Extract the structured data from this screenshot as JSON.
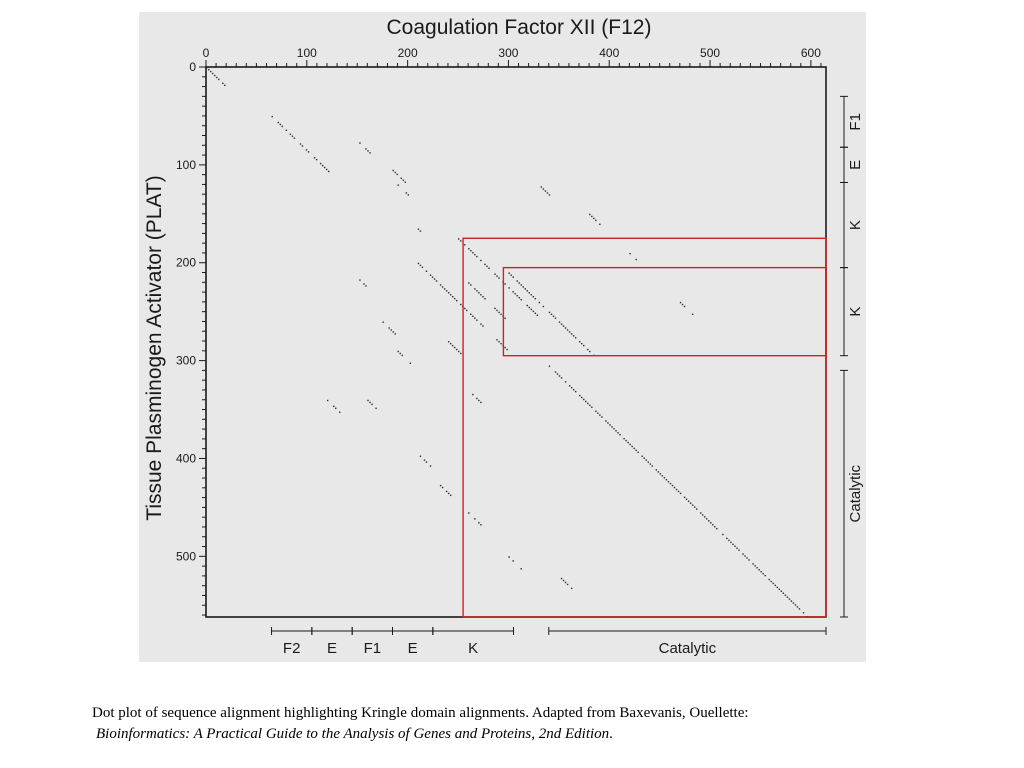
{
  "figure": {
    "title": "Coagulation Factor XII (F12)",
    "x_axis_label": "Coagulation Factor XII (F12)",
    "y_axis_label": "Tissue Plasminogen Activator (PLAT)",
    "x_ticks": [
      0,
      100,
      200,
      300,
      400,
      500,
      600
    ],
    "y_ticks": [
      0,
      100,
      200,
      300,
      400,
      500
    ],
    "x_max": 615,
    "y_max": 562,
    "bottom_domains": [
      {
        "label": "F2",
        "start": 65,
        "end": 105
      },
      {
        "label": "E",
        "start": 105,
        "end": 145
      },
      {
        "label": "F1",
        "start": 145,
        "end": 185
      },
      {
        "label": "E",
        "start": 185,
        "end": 225
      },
      {
        "label": "K",
        "start": 225,
        "end": 305
      },
      {
        "label": "Catalytic",
        "start": 340,
        "end": 615
      }
    ],
    "right_domains": [
      {
        "label": "F1",
        "start": 30,
        "end": 82
      },
      {
        "label": "E",
        "start": 82,
        "end": 118
      },
      {
        "label": "K",
        "start": 118,
        "end": 205
      },
      {
        "label": "K",
        "start": 205,
        "end": 295
      },
      {
        "label": "Catalytic",
        "start": 310,
        "end": 562
      }
    ],
    "highlight_color": "#d42020",
    "highlight_boxes": [
      {
        "x_start": 255,
        "x_end": 615,
        "y_start": 175,
        "y_end": 562
      },
      {
        "x_start": 295,
        "x_end": 615,
        "y_start": 205,
        "y_end": 295
      }
    ],
    "background_color": "#e8e8e8",
    "dot_color": "#2a2a2a"
  },
  "caption": {
    "text": "Dot plot of sequence alignment highlighting Kringle domain alignments. Adapted from Baxevanis, Ouellette:",
    "book_title": "Bioinformatics: A Practical Guide to the Analysis of Genes and Proteins, 2nd Edition",
    "suffix": "."
  }
}
